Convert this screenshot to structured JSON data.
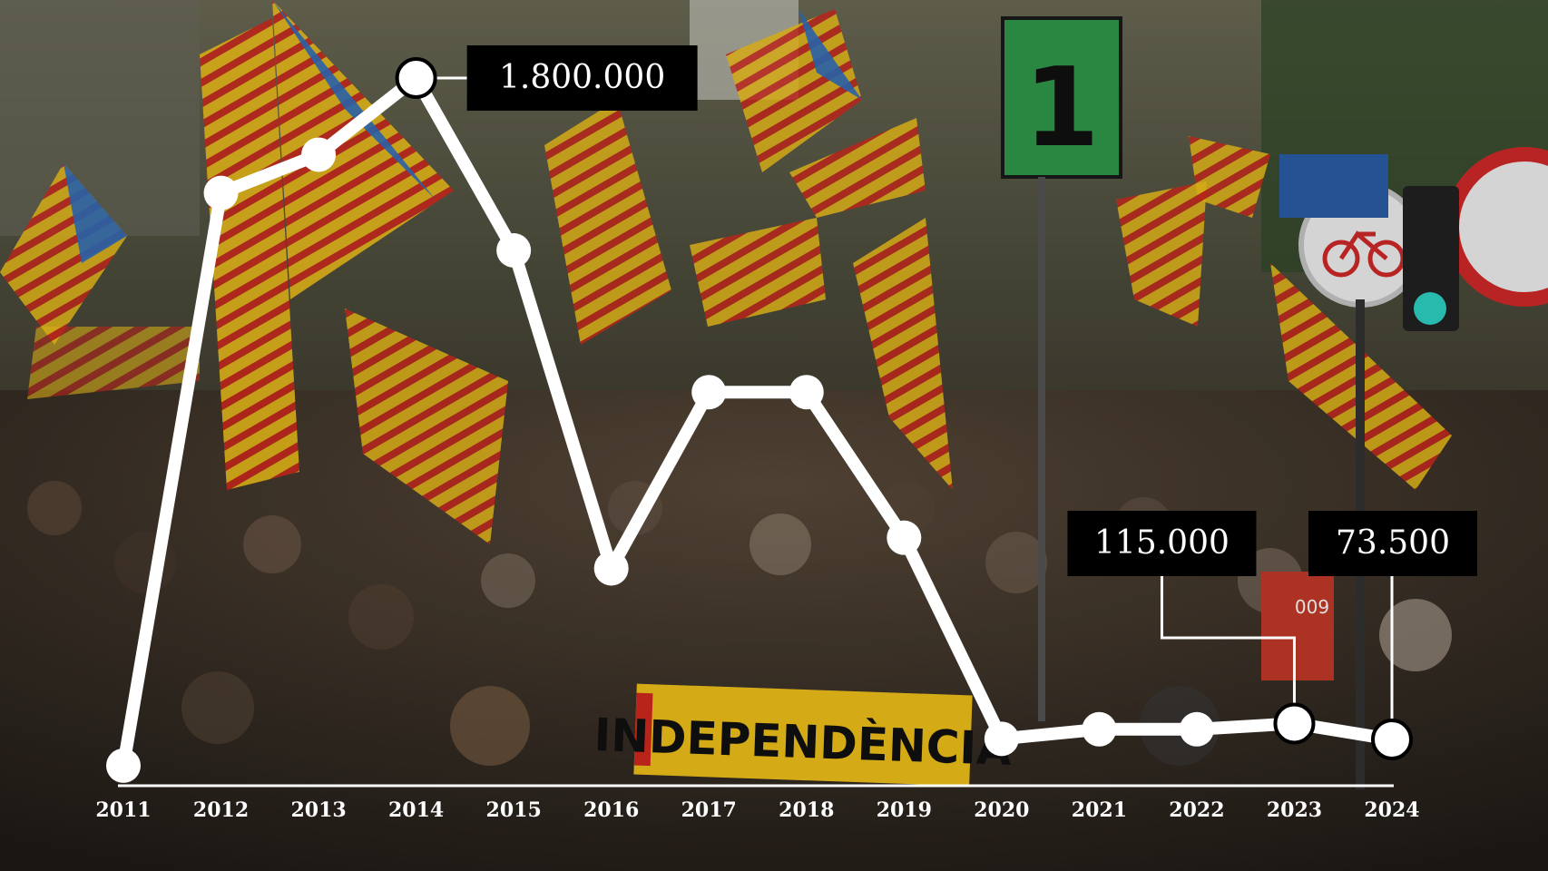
{
  "chart_data": {
    "type": "line",
    "title": "",
    "xlabel": "",
    "ylabel": "",
    "x": [
      "2011",
      "2012",
      "2013",
      "2014",
      "2015",
      "2016",
      "2017",
      "2018",
      "2019",
      "2020",
      "2021",
      "2022",
      "2023",
      "2024"
    ],
    "series": [
      {
        "values": [
          5000,
          1500000,
          1600000,
          1800000,
          1350000,
          520000,
          980000,
          980000,
          600000,
          75000,
          100000,
          100000,
          115000,
          73500
        ]
      }
    ],
    "ylim": [
      0,
      1800000
    ],
    "grid": false,
    "annotations": [
      {
        "x": "2014",
        "text": "1.800.000"
      },
      {
        "x": "2023",
        "text": "115.000"
      },
      {
        "x": "2024",
        "text": "73.500"
      }
    ],
    "colors": {
      "line": "#ffffff",
      "label_bg": "#000000",
      "label_text": "#ffffff"
    }
  },
  "background": {
    "description_visible_text": [
      "INDEPENDÈNCIA",
      "1",
      "009"
    ]
  }
}
